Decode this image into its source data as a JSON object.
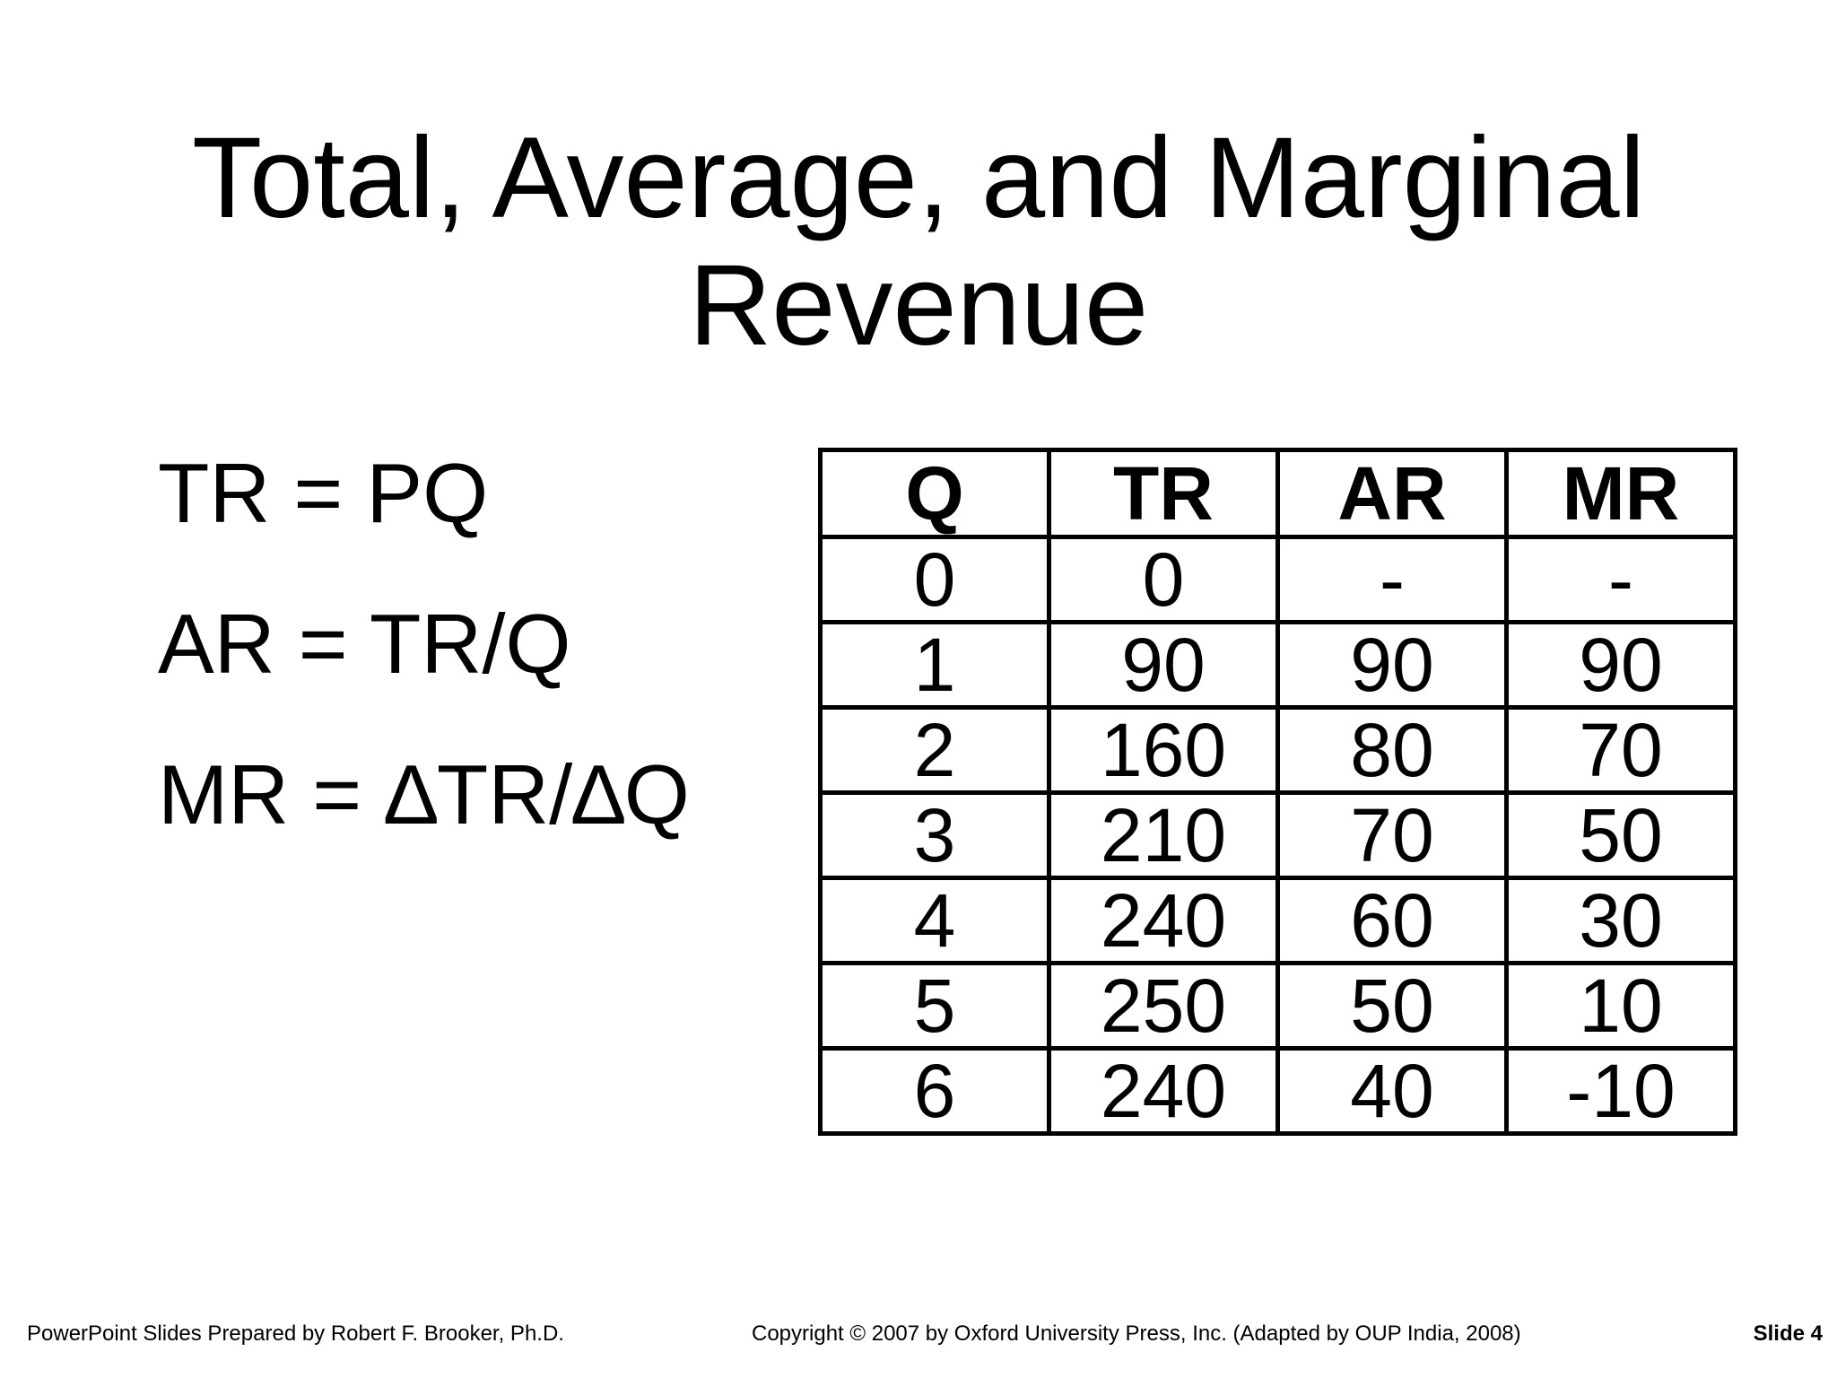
{
  "title": {
    "line1": "Total, Average, and Marginal",
    "line2": "Revenue"
  },
  "formulas": [
    "TR = PQ",
    "AR = TR/Q",
    "MR = ∆TR/∆Q"
  ],
  "table": {
    "headers": [
      "Q",
      "TR",
      "AR",
      "MR"
    ],
    "rows": [
      [
        "0",
        "0",
        "-",
        "-"
      ],
      [
        "1",
        "90",
        "90",
        "90"
      ],
      [
        "2",
        "160",
        "80",
        "70"
      ],
      [
        "3",
        "210",
        "70",
        "50"
      ],
      [
        "4",
        "240",
        "60",
        "30"
      ],
      [
        "5",
        "250",
        "50",
        "10"
      ],
      [
        "6",
        "240",
        "40",
        "-10"
      ]
    ]
  },
  "footer": {
    "left": "PowerPoint Slides Prepared by Robert F. Brooker, Ph.D.",
    "center": "Copyright © 2007 by Oxford University Press, Inc. (Adapted by OUP India, 2008)",
    "right": "Slide 4"
  }
}
